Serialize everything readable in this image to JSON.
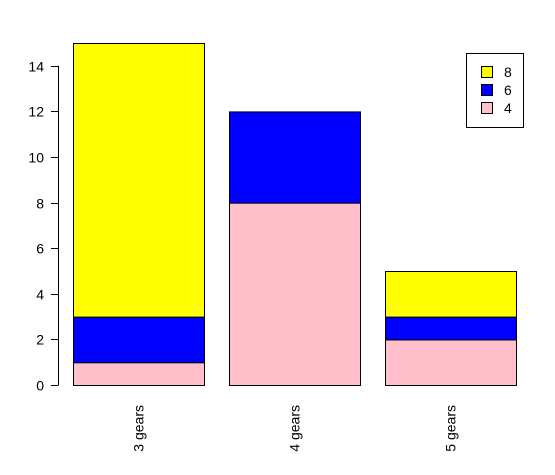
{
  "chart_data": {
    "type": "bar",
    "stacked": true,
    "title": "",
    "xlabel": "",
    "ylabel": "",
    "categories": [
      "3 gears",
      "4 gears",
      "5 gears"
    ],
    "series": [
      {
        "name": "4",
        "values": [
          1,
          8,
          2
        ],
        "color": "#FFC0CB"
      },
      {
        "name": "6",
        "values": [
          2,
          4,
          1
        ],
        "color": "#0000FF"
      },
      {
        "name": "8",
        "values": [
          12,
          0,
          2
        ],
        "color": "#FFFF00"
      }
    ],
    "ylim": [
      0,
      15
    ],
    "yticks": [
      0,
      2,
      4,
      6,
      8,
      10,
      12,
      14
    ],
    "ytick_labels": [
      "0",
      "2",
      "4",
      "6",
      "8",
      "10",
      "12",
      "14"
    ],
    "grid": false,
    "legend": {
      "position": "top-right",
      "entries": [
        "8",
        "6",
        "4"
      ]
    }
  }
}
